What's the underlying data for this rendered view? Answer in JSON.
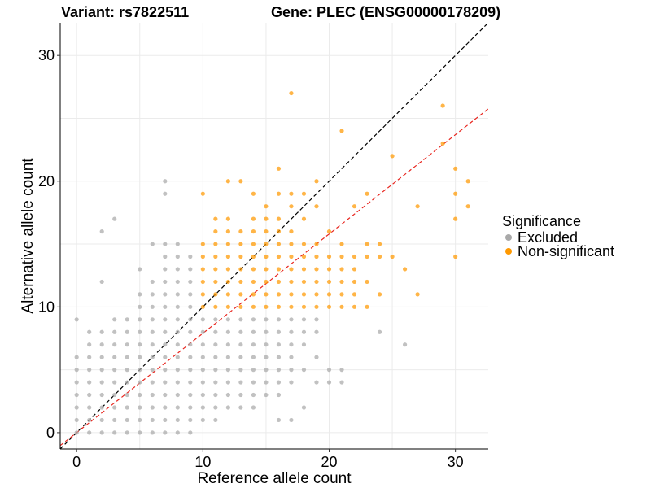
{
  "chart_data": {
    "type": "scatter",
    "title_left": "Variant: rs7822511",
    "title_right": "Gene: PLEC (ENSG00000178209)",
    "xlabel": "Reference allele count",
    "ylabel": "Alternative allele count",
    "xlim": [
      -1.3,
      32.6
    ],
    "ylim": [
      -1.3,
      32.6
    ],
    "xticks": [
      0,
      10,
      20,
      30
    ],
    "yticks": [
      0,
      10,
      20,
      30
    ],
    "grid": true,
    "legend": {
      "title": "Significance",
      "position": "right",
      "entries": [
        {
          "label": "Excluded",
          "color": "#a9a9a9"
        },
        {
          "label": "Non-significant",
          "color": "#ff9900"
        }
      ]
    },
    "reference_lines": [
      {
        "name": "identity",
        "slope": 1.0,
        "intercept": 0,
        "color": "#000000",
        "dash": "dashed"
      },
      {
        "name": "fit",
        "slope": 0.79,
        "intercept": 0,
        "color": "#e8261f",
        "dash": "dashed"
      }
    ],
    "series": [
      {
        "name": "Excluded",
        "color": "#a9a9a9",
        "points": [
          [
            0,
            0
          ],
          [
            0,
            1
          ],
          [
            0,
            2
          ],
          [
            0,
            3
          ],
          [
            0,
            4
          ],
          [
            0,
            5
          ],
          [
            0,
            6
          ],
          [
            0,
            9
          ],
          [
            1,
            0
          ],
          [
            1,
            1
          ],
          [
            1,
            2
          ],
          [
            1,
            3
          ],
          [
            1,
            4
          ],
          [
            1,
            5
          ],
          [
            1,
            6
          ],
          [
            1,
            7
          ],
          [
            1,
            8
          ],
          [
            2,
            0
          ],
          [
            2,
            1
          ],
          [
            2,
            2
          ],
          [
            2,
            3
          ],
          [
            2,
            4
          ],
          [
            2,
            5
          ],
          [
            2,
            6
          ],
          [
            2,
            7
          ],
          [
            2,
            8
          ],
          [
            2,
            12
          ],
          [
            2,
            16
          ],
          [
            3,
            0
          ],
          [
            3,
            1
          ],
          [
            3,
            2
          ],
          [
            3,
            3
          ],
          [
            3,
            4
          ],
          [
            3,
            5
          ],
          [
            3,
            6
          ],
          [
            3,
            7
          ],
          [
            3,
            8
          ],
          [
            3,
            9
          ],
          [
            3,
            17
          ],
          [
            4,
            0
          ],
          [
            4,
            1
          ],
          [
            4,
            2
          ],
          [
            4,
            3
          ],
          [
            4,
            4
          ],
          [
            4,
            5
          ],
          [
            4,
            6
          ],
          [
            4,
            7
          ],
          [
            4,
            8
          ],
          [
            4,
            9
          ],
          [
            5,
            0
          ],
          [
            5,
            1
          ],
          [
            5,
            2
          ],
          [
            5,
            3
          ],
          [
            5,
            4
          ],
          [
            5,
            5
          ],
          [
            5,
            6
          ],
          [
            5,
            7
          ],
          [
            5,
            8
          ],
          [
            5,
            9
          ],
          [
            5,
            10
          ],
          [
            5,
            11
          ],
          [
            5,
            13
          ],
          [
            6,
            0
          ],
          [
            6,
            1
          ],
          [
            6,
            2
          ],
          [
            6,
            3
          ],
          [
            6,
            4
          ],
          [
            6,
            5
          ],
          [
            6,
            6
          ],
          [
            6,
            7
          ],
          [
            6,
            8
          ],
          [
            6,
            9
          ],
          [
            6,
            10
          ],
          [
            6,
            11
          ],
          [
            6,
            12
          ],
          [
            6,
            15
          ],
          [
            7,
            0
          ],
          [
            7,
            1
          ],
          [
            7,
            2
          ],
          [
            7,
            3
          ],
          [
            7,
            4
          ],
          [
            7,
            5
          ],
          [
            7,
            6
          ],
          [
            7,
            7
          ],
          [
            7,
            8
          ],
          [
            7,
            9
          ],
          [
            7,
            10
          ],
          [
            7,
            11
          ],
          [
            7,
            12
          ],
          [
            7,
            13
          ],
          [
            7,
            14
          ],
          [
            7,
            15
          ],
          [
            7,
            19
          ],
          [
            7,
            20
          ],
          [
            8,
            0
          ],
          [
            8,
            1
          ],
          [
            8,
            2
          ],
          [
            8,
            3
          ],
          [
            8,
            4
          ],
          [
            8,
            5
          ],
          [
            8,
            6
          ],
          [
            8,
            7
          ],
          [
            8,
            8
          ],
          [
            8,
            9
          ],
          [
            8,
            10
          ],
          [
            8,
            11
          ],
          [
            8,
            12
          ],
          [
            8,
            13
          ],
          [
            8,
            14
          ],
          [
            8,
            15
          ],
          [
            9,
            0
          ],
          [
            9,
            1
          ],
          [
            9,
            2
          ],
          [
            9,
            3
          ],
          [
            9,
            4
          ],
          [
            9,
            5
          ],
          [
            9,
            6
          ],
          [
            9,
            7
          ],
          [
            9,
            8
          ],
          [
            9,
            9
          ],
          [
            9,
            10
          ],
          [
            9,
            11
          ],
          [
            9,
            12
          ],
          [
            9,
            13
          ],
          [
            9,
            14
          ],
          [
            10,
            1
          ],
          [
            10,
            2
          ],
          [
            10,
            3
          ],
          [
            10,
            4
          ],
          [
            10,
            5
          ],
          [
            10,
            6
          ],
          [
            10,
            7
          ],
          [
            10,
            8
          ],
          [
            10,
            9
          ],
          [
            11,
            1
          ],
          [
            11,
            2
          ],
          [
            11,
            3
          ],
          [
            11,
            4
          ],
          [
            11,
            5
          ],
          [
            11,
            6
          ],
          [
            11,
            7
          ],
          [
            11,
            8
          ],
          [
            11,
            9
          ],
          [
            12,
            2
          ],
          [
            12,
            3
          ],
          [
            12,
            4
          ],
          [
            12,
            5
          ],
          [
            12,
            6
          ],
          [
            12,
            7
          ],
          [
            12,
            8
          ],
          [
            12,
            9
          ],
          [
            13,
            2
          ],
          [
            13,
            3
          ],
          [
            13,
            4
          ],
          [
            13,
            5
          ],
          [
            13,
            6
          ],
          [
            13,
            7
          ],
          [
            13,
            8
          ],
          [
            13,
            9
          ],
          [
            14,
            2
          ],
          [
            14,
            3
          ],
          [
            14,
            4
          ],
          [
            14,
            5
          ],
          [
            14,
            6
          ],
          [
            14,
            7
          ],
          [
            14,
            8
          ],
          [
            14,
            9
          ],
          [
            15,
            3
          ],
          [
            15,
            4
          ],
          [
            15,
            5
          ],
          [
            15,
            6
          ],
          [
            15,
            7
          ],
          [
            15,
            8
          ],
          [
            15,
            9
          ],
          [
            16,
            1
          ],
          [
            16,
            3
          ],
          [
            16,
            4
          ],
          [
            16,
            5
          ],
          [
            16,
            6
          ],
          [
            16,
            7
          ],
          [
            16,
            8
          ],
          [
            16,
            9
          ],
          [
            17,
            1
          ],
          [
            17,
            4
          ],
          [
            17,
            5
          ],
          [
            17,
            6
          ],
          [
            17,
            7
          ],
          [
            17,
            8
          ],
          [
            17,
            9
          ],
          [
            18,
            2
          ],
          [
            18,
            5
          ],
          [
            18,
            7
          ],
          [
            18,
            8
          ],
          [
            18,
            9
          ],
          [
            19,
            4
          ],
          [
            19,
            6
          ],
          [
            19,
            8
          ],
          [
            19,
            9
          ],
          [
            20,
            4
          ],
          [
            20,
            5
          ],
          [
            21,
            4
          ],
          [
            21,
            5
          ],
          [
            24,
            8
          ],
          [
            26,
            7
          ]
        ]
      },
      {
        "name": "Non-significant",
        "color": "#ff9900",
        "points": [
          [
            10,
            10
          ],
          [
            10,
            11
          ],
          [
            10,
            12
          ],
          [
            10,
            13
          ],
          [
            10,
            14
          ],
          [
            10,
            15
          ],
          [
            10,
            19
          ],
          [
            11,
            10
          ],
          [
            11,
            11
          ],
          [
            11,
            12
          ],
          [
            11,
            13
          ],
          [
            11,
            14
          ],
          [
            11,
            15
          ],
          [
            11,
            16
          ],
          [
            11,
            17
          ],
          [
            12,
            10
          ],
          [
            12,
            11
          ],
          [
            12,
            12
          ],
          [
            12,
            13
          ],
          [
            12,
            14
          ],
          [
            12,
            15
          ],
          [
            12,
            16
          ],
          [
            12,
            17
          ],
          [
            12,
            20
          ],
          [
            13,
            10
          ],
          [
            13,
            11
          ],
          [
            13,
            12
          ],
          [
            13,
            13
          ],
          [
            13,
            14
          ],
          [
            13,
            15
          ],
          [
            13,
            16
          ],
          [
            13,
            20
          ],
          [
            14,
            10
          ],
          [
            14,
            11
          ],
          [
            14,
            12
          ],
          [
            14,
            13
          ],
          [
            14,
            14
          ],
          [
            14,
            15
          ],
          [
            14,
            16
          ],
          [
            14,
            17
          ],
          [
            14,
            19
          ],
          [
            15,
            10
          ],
          [
            15,
            11
          ],
          [
            15,
            12
          ],
          [
            15,
            13
          ],
          [
            15,
            14
          ],
          [
            15,
            15
          ],
          [
            15,
            16
          ],
          [
            15,
            17
          ],
          [
            15,
            18
          ],
          [
            16,
            10
          ],
          [
            16,
            11
          ],
          [
            16,
            12
          ],
          [
            16,
            13
          ],
          [
            16,
            14
          ],
          [
            16,
            15
          ],
          [
            16,
            16
          ],
          [
            16,
            17
          ],
          [
            16,
            19
          ],
          [
            16,
            21
          ],
          [
            17,
            10
          ],
          [
            17,
            11
          ],
          [
            17,
            12
          ],
          [
            17,
            13
          ],
          [
            17,
            14
          ],
          [
            17,
            15
          ],
          [
            17,
            16
          ],
          [
            17,
            18
          ],
          [
            17,
            19
          ],
          [
            17,
            27
          ],
          [
            18,
            10
          ],
          [
            18,
            11
          ],
          [
            18,
            12
          ],
          [
            18,
            13
          ],
          [
            18,
            14
          ],
          [
            18,
            15
          ],
          [
            18,
            17
          ],
          [
            18,
            19
          ],
          [
            19,
            10
          ],
          [
            19,
            11
          ],
          [
            19,
            12
          ],
          [
            19,
            13
          ],
          [
            19,
            14
          ],
          [
            19,
            15
          ],
          [
            19,
            18
          ],
          [
            19,
            20
          ],
          [
            20,
            10
          ],
          [
            20,
            11
          ],
          [
            20,
            12
          ],
          [
            20,
            13
          ],
          [
            20,
            14
          ],
          [
            20,
            16
          ],
          [
            21,
            10
          ],
          [
            21,
            11
          ],
          [
            21,
            12
          ],
          [
            21,
            13
          ],
          [
            21,
            14
          ],
          [
            21,
            15
          ],
          [
            21,
            24
          ],
          [
            22,
            10
          ],
          [
            22,
            11
          ],
          [
            22,
            12
          ],
          [
            22,
            13
          ],
          [
            22,
            14
          ],
          [
            22,
            18
          ],
          [
            23,
            10
          ],
          [
            23,
            12
          ],
          [
            23,
            14
          ],
          [
            23,
            15
          ],
          [
            23,
            19
          ],
          [
            24,
            11
          ],
          [
            24,
            14
          ],
          [
            24,
            15
          ],
          [
            25,
            14
          ],
          [
            25,
            22
          ],
          [
            26,
            13
          ],
          [
            27,
            11
          ],
          [
            27,
            18
          ],
          [
            29,
            23
          ],
          [
            29,
            26
          ],
          [
            30,
            14
          ],
          [
            30,
            17
          ],
          [
            30,
            19
          ],
          [
            30,
            21
          ],
          [
            31,
            18
          ],
          [
            31,
            20
          ]
        ]
      }
    ]
  }
}
